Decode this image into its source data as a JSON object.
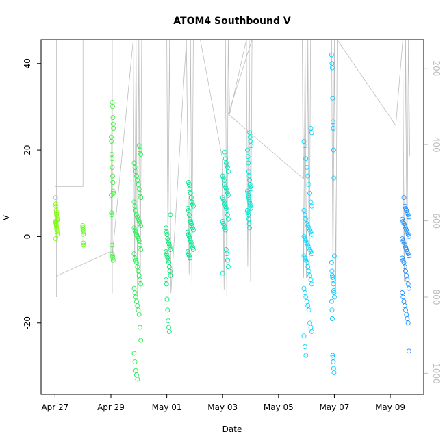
{
  "chart_data": {
    "type": "scatter",
    "title": "ATOM4 Southbound V",
    "xlabel": "Date",
    "ylabel": "V",
    "x_ticks": [
      "Apr 27",
      "Apr 29",
      "May 01",
      "May 03",
      "May 05",
      "May 07",
      "May 09"
    ],
    "x_tick_days": [
      0,
      2,
      4,
      6,
      8,
      10,
      12
    ],
    "xlim_days": [
      -0.5,
      13.2
    ],
    "ylim": [
      -36.5,
      45.5
    ],
    "y_ticks": [
      -20,
      0,
      20,
      40
    ],
    "y2_ticks": [
      200,
      400,
      600,
      800,
      1000
    ],
    "y2lim": [
      1055,
      125
    ],
    "grid": false,
    "colors": {
      "scatter_gradient": [
        "#7cfc00",
        "#00e676",
        "#00e5ff",
        "#1e90ff"
      ],
      "depth_line": "#bdbdbd"
    },
    "scatter_groups": [
      {
        "date": "Apr 27",
        "day": 0.05,
        "spread": 0.03,
        "values": [
          9,
          7.5,
          7,
          6,
          5.5,
          5,
          4.5,
          4,
          3.8,
          3.5,
          3.2,
          3,
          2.8,
          2.5,
          2,
          1.5,
          1,
          0.5,
          -0.5
        ]
      },
      {
        "date": "Apr 28",
        "day": 1.0,
        "spread": 0.02,
        "values": [
          2.5,
          2,
          1.5,
          1,
          0.5,
          -1.5,
          -2
        ]
      },
      {
        "date": "Apr 29",
        "day": 2.05,
        "spread": 0.04,
        "values": [
          31,
          30,
          27.5,
          26,
          25,
          23,
          22,
          19,
          18,
          16,
          14,
          12.5,
          10.5,
          10,
          9.5,
          5.5,
          5,
          -2,
          -4,
          -4.5,
          -5,
          -5.5
        ]
      },
      {
        "date": "Apr 30",
        "day": 2.95,
        "spread": 0.12,
        "values": [
          21,
          20,
          19,
          17,
          16,
          15,
          14,
          13,
          12,
          11,
          10,
          9,
          8,
          7,
          6,
          5,
          4.5,
          4,
          3.5,
          3,
          2.5,
          2,
          1.5,
          1,
          0.5,
          0,
          -0.5,
          -1,
          -2,
          -3,
          -4,
          -5,
          -5.5,
          -6,
          -7,
          -8,
          -9,
          -10,
          -11,
          -12,
          -13,
          -14,
          -15,
          -16,
          -17,
          -18,
          -21,
          -24,
          -27,
          -29,
          -31,
          -32,
          -33
        ]
      },
      {
        "date": "May 01",
        "day": 4.05,
        "spread": 0.08,
        "values": [
          5,
          2,
          1,
          0.5,
          -0.5,
          -1,
          -1.5,
          -2,
          -2.5,
          -3,
          -3.5,
          -4,
          -4.5,
          -5,
          -5.5,
          -6,
          -7,
          -8,
          -9,
          -10,
          -11,
          -14.5,
          -17,
          -19.5,
          -21,
          -22
        ]
      },
      {
        "date": "May 02",
        "day": 4.85,
        "spread": 0.1,
        "values": [
          12.5,
          12,
          11,
          10,
          9,
          8,
          7.5,
          7,
          6.5,
          6,
          5,
          4,
          3.5,
          3,
          2.5,
          2,
          1.5,
          1,
          0.5,
          0,
          -0.5,
          -1,
          -1.5,
          -2,
          -2.5,
          -3,
          -3.5,
          -4,
          -4.5,
          -5
        ]
      },
      {
        "date": "May 03",
        "day": 6.1,
        "spread": 0.1,
        "values": [
          19.5,
          18,
          17,
          16.5,
          16,
          15,
          14,
          13.5,
          13,
          12,
          11.5,
          11,
          10.5,
          10,
          9.5,
          9,
          8.5,
          8,
          7.5,
          7,
          6.5,
          6,
          5,
          4,
          3.5,
          3,
          2.5,
          2,
          1.5,
          -3,
          -4,
          -5.5,
          -7,
          -8.5
        ]
      },
      {
        "date": "May 04",
        "day": 6.95,
        "spread": 0.06,
        "values": [
          24,
          23,
          22,
          21,
          20,
          18.5,
          17,
          15,
          14,
          13,
          12,
          11.5,
          11,
          10.5,
          10,
          9.5,
          9,
          8.5,
          8,
          7.5,
          7,
          6.5,
          6,
          5.5,
          5,
          4,
          3,
          2
        ]
      },
      {
        "date": "May 06",
        "day": 9.05,
        "spread": 0.14,
        "values": [
          25,
          24,
          22,
          21,
          18,
          16,
          14,
          12,
          10,
          8,
          7,
          6,
          5,
          4,
          3,
          2.5,
          2,
          1.5,
          1,
          0.5,
          0,
          -0.5,
          -1,
          -1.5,
          -2,
          -2.5,
          -3,
          -3.5,
          -4,
          -4.5,
          -5,
          -5.5,
          -6,
          -7,
          -8,
          -9,
          -10,
          -11,
          -12,
          -13,
          -14,
          -15,
          -16,
          -17,
          -20,
          -21,
          -22,
          -23,
          -25.5,
          -27.5
        ]
      },
      {
        "date": "May 07",
        "day": 9.95,
        "spread": 0.05,
        "values": [
          42,
          40,
          39,
          32,
          26.5,
          25,
          20,
          13.5,
          -4.5,
          -6,
          -8,
          -9,
          -9.5,
          -10,
          -11,
          -12.5,
          -13,
          -14,
          -15,
          -17,
          -19,
          -27.5,
          -28,
          -29,
          -30.5,
          -31.5
        ]
      },
      {
        "date": "May 09",
        "day": 12.55,
        "spread": 0.12,
        "values": [
          9,
          7,
          6.5,
          6,
          5.5,
          5,
          4.5,
          4,
          3.5,
          3,
          2.5,
          2,
          1.5,
          1,
          0.5,
          0,
          -0.5,
          -1,
          -1.5,
          -2,
          -2.5,
          -3,
          -3.5,
          -4,
          -4.5,
          -5,
          -5.5,
          -6,
          -7,
          -8,
          -9,
          -10,
          -11,
          -12,
          -13,
          -14,
          -15,
          -16,
          -17,
          -18,
          -19,
          -20,
          -26.5
        ]
      }
    ],
    "depth_profile": [
      [
        0.0,
        125
      ],
      [
        0.0,
        510
      ],
      [
        1.0,
        510
      ],
      [
        1.0,
        125
      ],
      [
        0.05,
        125
      ],
      [
        0.05,
        660
      ],
      [
        0.05,
        800
      ],
      [
        0.05,
        745
      ],
      [
        2.0,
        680
      ],
      [
        2.05,
        125
      ],
      [
        2.05,
        790
      ],
      [
        2.05,
        690
      ],
      [
        2.8,
        125
      ],
      [
        2.85,
        700
      ],
      [
        2.9,
        125
      ],
      [
        2.95,
        800
      ],
      [
        3.0,
        125
      ],
      [
        3.05,
        780
      ],
      [
        3.1,
        125
      ],
      [
        4.0,
        125
      ],
      [
        4.05,
        800
      ],
      [
        4.05,
        600
      ],
      [
        4.1,
        125
      ],
      [
        4.15,
        790
      ],
      [
        4.7,
        125
      ],
      [
        4.8,
        740
      ],
      [
        4.85,
        125
      ],
      [
        4.9,
        760
      ],
      [
        4.95,
        125
      ],
      [
        5.2,
        125
      ],
      [
        6.0,
        440
      ],
      [
        6.05,
        780
      ],
      [
        6.1,
        125
      ],
      [
        6.15,
        800
      ],
      [
        6.2,
        125
      ],
      [
        6.25,
        320
      ],
      [
        6.85,
        125
      ],
      [
        6.9,
        720
      ],
      [
        6.95,
        125
      ],
      [
        7.0,
        760
      ],
      [
        7.05,
        125
      ],
      [
        6.2,
        320
      ],
      [
        8.9,
        490
      ],
      [
        8.85,
        125
      ],
      [
        8.9,
        750
      ],
      [
        8.95,
        125
      ],
      [
        9.0,
        750
      ],
      [
        9.05,
        125
      ],
      [
        9.1,
        760
      ],
      [
        9.15,
        125
      ],
      [
        9.9,
        125
      ],
      [
        9.95,
        760
      ],
      [
        10.0,
        125
      ],
      [
        10.05,
        780
      ],
      [
        10.1,
        125
      ],
      [
        12.2,
        350
      ],
      [
        12.45,
        125
      ],
      [
        12.5,
        760
      ],
      [
        12.55,
        125
      ],
      [
        12.6,
        740
      ],
      [
        12.65,
        125
      ],
      [
        12.7,
        430
      ]
    ]
  }
}
